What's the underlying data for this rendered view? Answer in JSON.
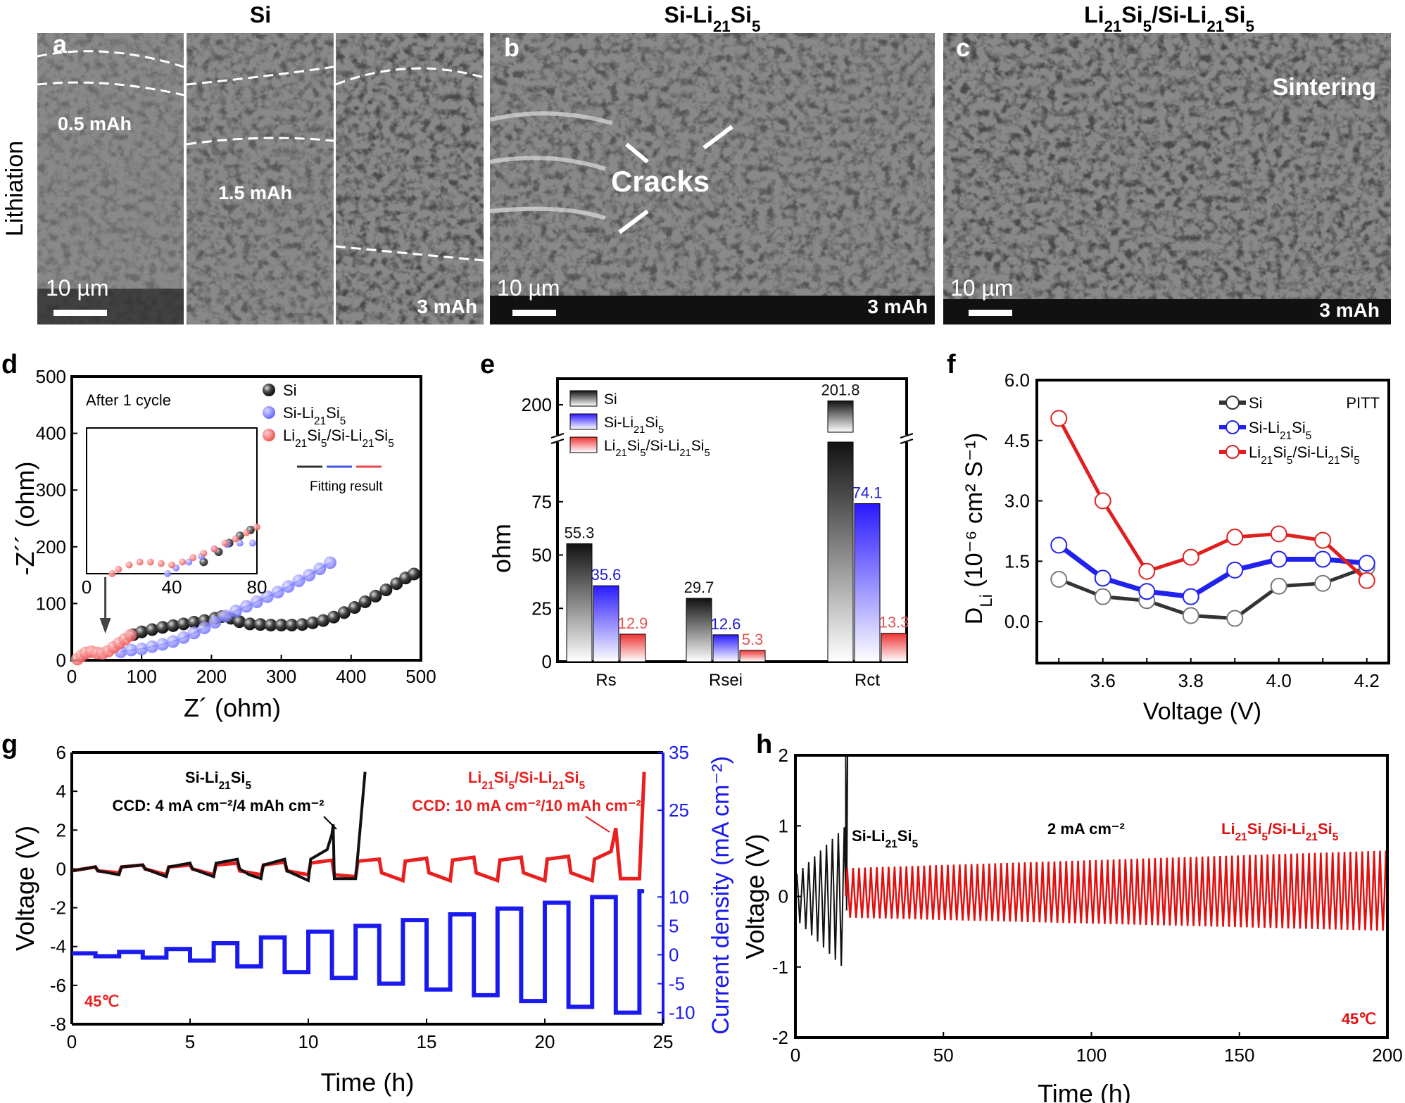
{
  "panel_titles": {
    "a": "Si",
    "b": "Si-Li21Si5",
    "c": "Li21Si5/Si-Li21Si5"
  },
  "row_label": "Lithiation",
  "sem": {
    "a": {
      "label": "a",
      "capacities": [
        "0.5 mAh",
        "1.5 mAh",
        "3 mAh"
      ],
      "scale_bar": "10 µm"
    },
    "b": {
      "label": "b",
      "annotation": "Cracks",
      "capacity": "3 mAh",
      "scale_bar": "10 µm"
    },
    "c": {
      "label": "c",
      "annotation": "Sintering",
      "capacity": "3 mAh",
      "scale_bar": "10 µm"
    }
  },
  "colors": {
    "si": "#333333",
    "si_li21si5": "#2222ee",
    "li21si5_si_li21si5": "#e02020"
  },
  "chart_data": [
    {
      "panel": "d",
      "type": "scatter",
      "xlabel": "Z´ (ohm)",
      "ylabel": "-Z´´ (ohm)",
      "xlim": [
        0,
        500
      ],
      "ylim": [
        0,
        500
      ],
      "xticks": [
        0,
        100,
        200,
        300,
        400,
        500
      ],
      "yticks": [
        0,
        100,
        200,
        300,
        400,
        500
      ],
      "annotation": "After 1 cycle",
      "fit_label": "Fitting result",
      "series": [
        {
          "name": "Si",
          "points": [
            [
              88,
              45
            ],
            [
              100,
              50
            ],
            [
              115,
              54
            ],
            [
              130,
              58
            ],
            [
              145,
              61
            ],
            [
              160,
              64
            ],
            [
              175,
              67
            ],
            [
              190,
              70
            ],
            [
              205,
              74
            ],
            [
              215,
              77
            ],
            [
              228,
              74
            ],
            [
              240,
              68
            ],
            [
              255,
              64
            ],
            [
              270,
              63
            ],
            [
              285,
              62
            ],
            [
              300,
              62
            ],
            [
              315,
              62
            ],
            [
              330,
              63
            ],
            [
              345,
              66
            ],
            [
              360,
              70
            ],
            [
              375,
              76
            ],
            [
              390,
              84
            ],
            [
              405,
              93
            ],
            [
              420,
              103
            ],
            [
              435,
              113
            ],
            [
              450,
              124
            ],
            [
              465,
              135
            ],
            [
              478,
              145
            ],
            [
              490,
              152
            ]
          ]
        },
        {
          "name": "Si-Li21Si5",
          "points": [
            [
              70,
              15
            ],
            [
              85,
              18
            ],
            [
              100,
              20
            ],
            [
              115,
              24
            ],
            [
              130,
              28
            ],
            [
              145,
              33
            ],
            [
              160,
              40
            ],
            [
              175,
              48
            ],
            [
              190,
              57
            ],
            [
              205,
              67
            ],
            [
              220,
              78
            ],
            [
              235,
              87
            ],
            [
              250,
              95
            ],
            [
              265,
              103
            ],
            [
              280,
              112
            ],
            [
              295,
              120
            ],
            [
              310,
              130
            ],
            [
              325,
              140
            ],
            [
              340,
              150
            ],
            [
              355,
              161
            ],
            [
              370,
              172
            ]
          ]
        },
        {
          "name": "Li21Si5/Si-Li21Si5",
          "points": [
            [
              8,
              2
            ],
            [
              14,
              8
            ],
            [
              20,
              13
            ],
            [
              28,
              15
            ],
            [
              36,
              13
            ],
            [
              44,
              12
            ],
            [
              52,
              16
            ],
            [
              60,
              23
            ],
            [
              68,
              30
            ],
            [
              76,
              37
            ],
            [
              84,
              44
            ]
          ]
        }
      ],
      "inset": {
        "xlim": [
          0,
          80
        ],
        "xticks": [
          0,
          40,
          80
        ],
        "series": [
          {
            "name": "Si",
            "points": [
              [
                55,
                8
              ],
              [
                62,
                15
              ],
              [
                67,
                21
              ],
              [
                72,
                26
              ],
              [
                77,
                30
              ]
            ]
          },
          {
            "name": "Si-Li21Si5",
            "points": [
              [
                38,
                0
              ],
              [
                42,
                4
              ],
              [
                48,
                8
              ],
              [
                54,
                12
              ],
              [
                60,
                17
              ],
              [
                66,
                20
              ],
              [
                72,
                21
              ],
              [
                78,
                21
              ]
            ]
          },
          {
            "name": "Li21Si5/Si-Li21Si5",
            "points": [
              [
                12,
                0
              ],
              [
                15,
                3
              ],
              [
                20,
                6
              ],
              [
                25,
                8
              ],
              [
                30,
                8
              ],
              [
                35,
                7
              ],
              [
                40,
                6
              ],
              [
                45,
                8
              ],
              [
                50,
                11
              ],
              [
                55,
                14
              ],
              [
                60,
                17
              ],
              [
                65,
                21
              ],
              [
                70,
                24
              ],
              [
                75,
                28
              ],
              [
                80,
                32
              ]
            ]
          }
        ]
      }
    },
    {
      "panel": "e",
      "type": "bar",
      "ylabel": "ohm",
      "categories": [
        "Rs",
        "Rsei",
        "Rct"
      ],
      "ylim_lower": [
        0,
        104
      ],
      "ylim_upper": [
        184,
        213
      ],
      "yticks": [
        0,
        25,
        50,
        75,
        200
      ],
      "series": [
        {
          "name": "Si",
          "values": [
            55.3,
            29.7,
            201.8
          ],
          "labels": [
            "55.3",
            "29.7",
            "201.8"
          ]
        },
        {
          "name": "Si-Li21Si5",
          "values": [
            35.6,
            12.6,
            74.1
          ],
          "labels": [
            "35.6",
            "12.6",
            "74.1"
          ]
        },
        {
          "name": "Li21Si5/Si-Li21Si5",
          "values": [
            12.9,
            5.3,
            13.3
          ],
          "labels": [
            "12.9",
            "5.3",
            "13.3"
          ]
        }
      ]
    },
    {
      "panel": "f",
      "type": "line",
      "xlabel": "Voltage (V)",
      "ylabel_main": "D",
      "ylabel_sub": "Li",
      "ylabel_rest": " (10⁻⁶ cm² S⁻¹)",
      "annotation": "PITT",
      "x": [
        3.5,
        3.6,
        3.7,
        3.8,
        3.9,
        4.0,
        4.1,
        4.2
      ],
      "xlim": [
        3.45,
        4.25
      ],
      "ylim": [
        -1.03,
        6.0
      ],
      "xticks": [
        "3.6",
        "3.8",
        "4.0",
        "4.2"
      ],
      "yticks": [
        "0.0",
        "1.5",
        "3.0",
        "4.5",
        "6.0"
      ],
      "series": [
        {
          "name": "Si",
          "values": [
            1.05,
            0.62,
            0.52,
            0.15,
            0.08,
            0.88,
            0.95,
            1.35
          ]
        },
        {
          "name": "Si-Li21Si5",
          "values": [
            1.9,
            1.08,
            0.75,
            0.62,
            1.28,
            1.55,
            1.55,
            1.45
          ]
        },
        {
          "name": "Li21Si5/Si-Li21Si5",
          "values": [
            5.05,
            3.0,
            1.25,
            1.6,
            2.1,
            2.18,
            2.02,
            1.02
          ]
        }
      ]
    },
    {
      "panel": "g",
      "type": "line",
      "xlabel": "Time (h)",
      "ylabel": "Voltage (V)",
      "ylabel_right": "Current density (mA cm⁻²)",
      "xlim": [
        0,
        25
      ],
      "ylim": [
        -8,
        6
      ],
      "ylim_right": [
        -12,
        35
      ],
      "xticks": [
        0,
        5,
        10,
        15,
        20,
        25
      ],
      "yticks": [
        -8,
        -6,
        -4,
        -2,
        0,
        2,
        4,
        6
      ],
      "yticks_right": [
        -10,
        -5,
        0,
        5,
        10,
        25,
        35
      ],
      "temperature": "45℃",
      "labels": {
        "black_title": "Si-Li21Si5",
        "black_ccd": "CCD: 4 mA cm⁻²/4 mAh cm⁻²",
        "red_title": "Li21Si5/Si-Li21Si5",
        "red_ccd": "CCD: 10 mA cm⁻²/10 mAh cm⁻²"
      },
      "current_levels": [
        0.25,
        0.5,
        1,
        2,
        3,
        4,
        5,
        6,
        7,
        8,
        9,
        10
      ],
      "series": [
        {
          "name": "Si-Li21Si5",
          "points": [
            [
              0,
              -0.1
            ],
            [
              1,
              0.1
            ],
            [
              1.1,
              -0.1
            ],
            [
              2,
              -0.3
            ],
            [
              2.1,
              0.1
            ],
            [
              3,
              0.2
            ],
            [
              3.1,
              0
            ],
            [
              4,
              -0.4
            ],
            [
              4.1,
              0.1
            ],
            [
              5,
              0.3
            ],
            [
              5.1,
              0
            ],
            [
              6,
              -0.4
            ],
            [
              6.1,
              0.3
            ],
            [
              7,
              0.5
            ],
            [
              7.1,
              0
            ],
            [
              7.5,
              -0.3
            ],
            [
              8,
              -0.5
            ],
            [
              8.1,
              0.2
            ],
            [
              9,
              0.5
            ],
            [
              9.1,
              -0.1
            ],
            [
              10,
              -0.6
            ],
            [
              10.1,
              0.5
            ],
            [
              10.8,
              1.0
            ],
            [
              11,
              1.8
            ],
            [
              11.05,
              2.3
            ],
            [
              11.1,
              -0.5
            ],
            [
              12,
              -0.5
            ],
            [
              12.1,
              0.8
            ],
            [
              12.4,
              5.0
            ]
          ]
        },
        {
          "name": "Li21Si5/Si-Li21Si5",
          "points": [
            [
              0,
              -0.1
            ],
            [
              1,
              0.1
            ],
            [
              1.1,
              -0.1
            ],
            [
              2,
              -0.2
            ],
            [
              2.1,
              0.1
            ],
            [
              3,
              0.2
            ],
            [
              3.1,
              0
            ],
            [
              4,
              -0.3
            ],
            [
              4.1,
              0.1
            ],
            [
              5,
              0.2
            ],
            [
              5.1,
              0
            ],
            [
              6,
              -0.3
            ],
            [
              6.1,
              0.2
            ],
            [
              7,
              0.3
            ],
            [
              7.1,
              -0.1
            ],
            [
              8,
              -0.3
            ],
            [
              8.1,
              0.2
            ],
            [
              9,
              0.35
            ],
            [
              9.1,
              -0.1
            ],
            [
              10,
              -0.3
            ],
            [
              10.1,
              0.3
            ],
            [
              11,
              0.45
            ],
            [
              11.1,
              -0.3
            ],
            [
              12,
              -0.4
            ],
            [
              12.1,
              0.4
            ],
            [
              13,
              0.5
            ],
            [
              13.1,
              -0.2
            ],
            [
              14,
              -0.6
            ],
            [
              14.1,
              0.4
            ],
            [
              15,
              0.55
            ],
            [
              15.1,
              -0.2
            ],
            [
              16,
              -0.6
            ],
            [
              16.1,
              0.45
            ],
            [
              17,
              0.6
            ],
            [
              17.1,
              -0.2
            ],
            [
              18,
              -0.6
            ],
            [
              18.1,
              0.45
            ],
            [
              19,
              0.6
            ],
            [
              19.1,
              -0.2
            ],
            [
              20,
              -0.6
            ],
            [
              20.1,
              0.5
            ],
            [
              21,
              0.65
            ],
            [
              21.1,
              -0.2
            ],
            [
              22,
              -0.6
            ],
            [
              22.1,
              0.5
            ],
            [
              22.8,
              0.9
            ],
            [
              23,
              2.1
            ],
            [
              23.2,
              -0.5
            ],
            [
              24,
              -0.5
            ],
            [
              24.2,
              5.0
            ]
          ]
        }
      ]
    },
    {
      "panel": "h",
      "type": "line",
      "xlabel": "Time (h)",
      "ylabel": "Voltage (V)",
      "xlim": [
        0,
        200
      ],
      "ylim": [
        -2,
        2
      ],
      "xticks": [
        0,
        50,
        100,
        150,
        200
      ],
      "yticks": [
        -2,
        -1,
        0,
        1,
        2
      ],
      "temperature": "45℃",
      "current_label": "2 mA cm⁻²",
      "series": [
        {
          "name": "Si-Li21Si5",
          "time_range": [
            0,
            17
          ],
          "amplitude_range": [
            0.3,
            1.0
          ],
          "cycle_period_h": 2,
          "failure_voltage": 2
        },
        {
          "name": "Li21Si5/Si-Li21Si5",
          "time_range": [
            17,
            200
          ],
          "amplitude_range": [
            0.4,
            0.65
          ],
          "cycle_period_h": 2
        }
      ]
    }
  ]
}
